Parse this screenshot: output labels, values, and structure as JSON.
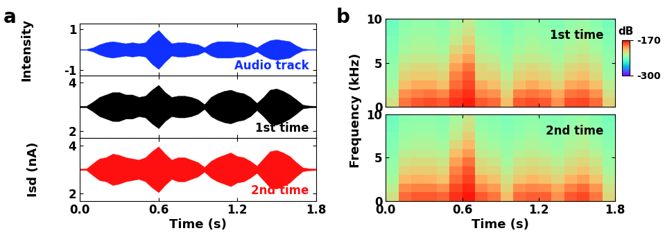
{
  "panel_labels": [
    "a",
    "b"
  ],
  "shared_labels": {
    "a_ylabel": "Isd (nA)",
    "b_ylabel": "Frequency (kHz)"
  },
  "chart_data": [
    {
      "type": "band",
      "ylabel": "Intensity",
      "annotation": "Audio track",
      "color": "#1030ff",
      "x": [
        0.0,
        0.05,
        0.1,
        0.15,
        0.2,
        0.25,
        0.3,
        0.35,
        0.4,
        0.45,
        0.5,
        0.55,
        0.6,
        0.65,
        0.7,
        0.75,
        0.8,
        0.85,
        0.9,
        0.95,
        1.0,
        1.05,
        1.1,
        1.15,
        1.2,
        1.25,
        1.3,
        1.35,
        1.4,
        1.45,
        1.5,
        1.55,
        1.6,
        1.65,
        1.7,
        1.75,
        1.8
      ],
      "upper": [
        0.02,
        0.02,
        0.1,
        0.25,
        0.35,
        0.4,
        0.35,
        0.3,
        0.35,
        0.3,
        0.35,
        0.7,
        0.95,
        0.6,
        0.3,
        0.35,
        0.35,
        0.3,
        0.25,
        0.1,
        0.3,
        0.4,
        0.4,
        0.4,
        0.35,
        0.35,
        0.25,
        0.1,
        0.3,
        0.45,
        0.5,
        0.45,
        0.4,
        0.2,
        0.05,
        0.02,
        0.02
      ],
      "lower": [
        -0.02,
        -0.02,
        -0.1,
        -0.25,
        -0.35,
        -0.4,
        -0.35,
        -0.3,
        -0.35,
        -0.3,
        -0.35,
        -0.7,
        -0.95,
        -0.6,
        -0.3,
        -0.35,
        -0.35,
        -0.3,
        -0.25,
        -0.1,
        -0.3,
        -0.4,
        -0.4,
        -0.4,
        -0.35,
        -0.35,
        -0.25,
        -0.1,
        -0.3,
        -0.45,
        -0.5,
        -0.45,
        -0.4,
        -0.2,
        -0.05,
        -0.02,
        -0.02
      ],
      "xlim": [
        0.0,
        1.8
      ],
      "xticks": [
        0.0,
        0.6,
        1.2,
        1.8
      ],
      "ylim": [
        -1.25,
        1.25
      ],
      "yticks": [
        -1,
        1
      ],
      "tick_labels": "y"
    },
    {
      "type": "band",
      "annotation": "1st time",
      "color": "#000000",
      "x": [
        0.0,
        0.05,
        0.1,
        0.15,
        0.2,
        0.25,
        0.3,
        0.35,
        0.4,
        0.45,
        0.5,
        0.55,
        0.6,
        0.65,
        0.7,
        0.75,
        0.8,
        0.85,
        0.9,
        0.95,
        1.0,
        1.05,
        1.1,
        1.15,
        1.2,
        1.25,
        1.3,
        1.35,
        1.4,
        1.45,
        1.5,
        1.55,
        1.6,
        1.65,
        1.7,
        1.75,
        1.8
      ],
      "upper": [
        3.03,
        3.03,
        3.2,
        3.4,
        3.5,
        3.6,
        3.6,
        3.5,
        3.5,
        3.4,
        3.45,
        3.7,
        3.9,
        3.6,
        3.4,
        3.45,
        3.45,
        3.4,
        3.3,
        3.1,
        3.4,
        3.55,
        3.65,
        3.7,
        3.6,
        3.55,
        3.4,
        3.15,
        3.4,
        3.7,
        3.75,
        3.65,
        3.5,
        3.3,
        3.08,
        3.04,
        3.03
      ],
      "lower": [
        2.97,
        2.97,
        2.8,
        2.6,
        2.5,
        2.4,
        2.4,
        2.5,
        2.5,
        2.6,
        2.55,
        2.3,
        2.1,
        2.4,
        2.6,
        2.55,
        2.55,
        2.6,
        2.7,
        2.9,
        2.6,
        2.45,
        2.35,
        2.3,
        2.4,
        2.45,
        2.6,
        2.85,
        2.6,
        2.3,
        2.25,
        2.35,
        2.5,
        2.7,
        2.92,
        2.96,
        2.97
      ],
      "xlim": [
        0.0,
        1.8
      ],
      "xticks": [
        0.0,
        0.6,
        1.2,
        1.8
      ],
      "ylim": [
        1.7,
        4.3
      ],
      "yticks": [
        2,
        4
      ],
      "tick_labels": "y"
    },
    {
      "type": "band",
      "annotation": "2nd time",
      "color": "#ff1010",
      "xlabel": "Time (s)",
      "x": [
        0.0,
        0.05,
        0.1,
        0.15,
        0.2,
        0.25,
        0.3,
        0.35,
        0.4,
        0.45,
        0.5,
        0.55,
        0.6,
        0.65,
        0.7,
        0.75,
        0.8,
        0.85,
        0.9,
        0.95,
        1.0,
        1.05,
        1.1,
        1.15,
        1.2,
        1.25,
        1.3,
        1.35,
        1.4,
        1.45,
        1.5,
        1.55,
        1.6,
        1.65,
        1.7,
        1.75,
        1.8
      ],
      "upper": [
        3.03,
        3.03,
        3.25,
        3.45,
        3.5,
        3.65,
        3.6,
        3.5,
        3.45,
        3.4,
        3.5,
        3.75,
        3.95,
        3.65,
        3.4,
        3.5,
        3.5,
        3.4,
        3.3,
        3.1,
        3.35,
        3.5,
        3.6,
        3.7,
        3.55,
        3.5,
        3.35,
        3.15,
        3.45,
        3.75,
        3.8,
        3.7,
        3.55,
        3.3,
        3.08,
        3.04,
        3.03
      ],
      "lower": [
        2.97,
        2.97,
        2.75,
        2.55,
        2.5,
        2.35,
        2.4,
        2.5,
        2.55,
        2.6,
        2.5,
        2.25,
        2.05,
        2.35,
        2.6,
        2.5,
        2.5,
        2.6,
        2.7,
        2.9,
        2.65,
        2.5,
        2.4,
        2.3,
        2.45,
        2.5,
        2.65,
        2.85,
        2.55,
        2.25,
        2.2,
        2.3,
        2.45,
        2.7,
        2.92,
        2.96,
        2.97
      ],
      "xlim": [
        0.0,
        1.8
      ],
      "xticks": [
        0.0,
        0.6,
        1.2,
        1.8
      ],
      "ylim": [
        1.7,
        4.3
      ],
      "yticks": [
        2,
        4
      ]
    },
    {
      "type": "heatmap",
      "annotation": "1st time",
      "x_edges": [
        0.0,
        0.1,
        0.2,
        0.3,
        0.4,
        0.5,
        0.6,
        0.7,
        0.8,
        0.9,
        1.0,
        1.1,
        1.2,
        1.3,
        1.4,
        1.5,
        1.6,
        1.7,
        1.8
      ],
      "y_edges": [
        0,
        1,
        2,
        3,
        4,
        5,
        6,
        7,
        8,
        9,
        10
      ],
      "cells": [
        [
          -215,
          -190,
          -185,
          -183,
          -185,
          -178,
          -175,
          -185,
          -188,
          -205,
          -185,
          -183,
          -185,
          -195,
          -183,
          -182,
          -188,
          -210
        ],
        [
          -220,
          -195,
          -192,
          -190,
          -193,
          -182,
          -178,
          -193,
          -195,
          -210,
          -192,
          -190,
          -192,
          -200,
          -190,
          -188,
          -195,
          -215
        ],
        [
          -225,
          -205,
          -200,
          -200,
          -205,
          -188,
          -182,
          -200,
          -205,
          -215,
          -205,
          -200,
          -205,
          -210,
          -200,
          -198,
          -205,
          -220
        ],
        [
          -228,
          -210,
          -208,
          -208,
          -210,
          -192,
          -185,
          -210,
          -210,
          -220,
          -210,
          -208,
          -210,
          -215,
          -208,
          -205,
          -212,
          -225
        ],
        [
          -230,
          -215,
          -212,
          -212,
          -215,
          -198,
          -190,
          -212,
          -215,
          -225,
          -215,
          -212,
          -215,
          -220,
          -212,
          -210,
          -215,
          -228
        ],
        [
          -232,
          -220,
          -218,
          -218,
          -220,
          -205,
          -198,
          -218,
          -220,
          -228,
          -220,
          -218,
          -220,
          -225,
          -218,
          -215,
          -220,
          -230
        ],
        [
          -235,
          -225,
          -222,
          -222,
          -225,
          -212,
          -205,
          -222,
          -225,
          -230,
          -225,
          -222,
          -225,
          -228,
          -222,
          -220,
          -225,
          -232
        ],
        [
          -236,
          -228,
          -225,
          -225,
          -228,
          -218,
          -210,
          -225,
          -228,
          -232,
          -228,
          -225,
          -228,
          -230,
          -225,
          -222,
          -228,
          -234
        ],
        [
          -238,
          -230,
          -228,
          -228,
          -230,
          -222,
          -215,
          -228,
          -230,
          -234,
          -230,
          -228,
          -230,
          -232,
          -228,
          -225,
          -230,
          -236
        ],
        [
          -240,
          -232,
          -230,
          -230,
          -232,
          -225,
          -218,
          -230,
          -232,
          -236,
          -232,
          -230,
          -232,
          -234,
          -230,
          -228,
          -232,
          -238
        ]
      ],
      "color_range": [
        -300,
        -170
      ],
      "colorbar": {
        "label": "dB",
        "ticks": [
          -170,
          -300
        ]
      },
      "xlim": [
        0.0,
        1.8
      ],
      "xticks": [
        0.0,
        0.6,
        1.2,
        1.8
      ],
      "ylim": [
        0,
        10
      ],
      "yticks": [
        0,
        5,
        10
      ],
      "tick_labels": "y"
    },
    {
      "type": "heatmap",
      "annotation": "2nd time",
      "xlabel": "Time (s)",
      "x_edges": [
        0.0,
        0.1,
        0.2,
        0.3,
        0.4,
        0.5,
        0.6,
        0.7,
        0.8,
        0.9,
        1.0,
        1.1,
        1.2,
        1.3,
        1.4,
        1.5,
        1.6,
        1.7,
        1.8
      ],
      "y_edges": [
        0,
        1,
        2,
        3,
        4,
        5,
        6,
        7,
        8,
        9,
        10
      ],
      "cells": [
        [
          -215,
          -188,
          -185,
          -185,
          -187,
          -178,
          -174,
          -185,
          -190,
          -205,
          -188,
          -186,
          -186,
          -195,
          -185,
          -182,
          -190,
          -212
        ],
        [
          -220,
          -194,
          -192,
          -192,
          -195,
          -182,
          -177,
          -193,
          -197,
          -210,
          -195,
          -193,
          -194,
          -200,
          -192,
          -188,
          -196,
          -215
        ],
        [
          -225,
          -204,
          -201,
          -202,
          -206,
          -188,
          -181,
          -201,
          -206,
          -215,
          -207,
          -203,
          -206,
          -210,
          -202,
          -198,
          -206,
          -220
        ],
        [
          -228,
          -210,
          -208,
          -209,
          -211,
          -192,
          -184,
          -210,
          -211,
          -220,
          -212,
          -210,
          -211,
          -215,
          -210,
          -206,
          -212,
          -225
        ],
        [
          -230,
          -215,
          -213,
          -213,
          -216,
          -198,
          -189,
          -213,
          -216,
          -225,
          -216,
          -214,
          -216,
          -220,
          -214,
          -211,
          -216,
          -228
        ],
        [
          -232,
          -220,
          -219,
          -219,
          -221,
          -205,
          -197,
          -219,
          -221,
          -228,
          -221,
          -219,
          -221,
          -225,
          -219,
          -216,
          -221,
          -230
        ],
        [
          -235,
          -225,
          -223,
          -223,
          -226,
          -212,
          -204,
          -223,
          -226,
          -230,
          -226,
          -223,
          -226,
          -228,
          -223,
          -221,
          -226,
          -232
        ],
        [
          -236,
          -228,
          -226,
          -226,
          -229,
          -218,
          -209,
          -226,
          -229,
          -232,
          -229,
          -226,
          -229,
          -230,
          -226,
          -223,
          -229,
          -234
        ],
        [
          -238,
          -230,
          -229,
          -229,
          -231,
          -222,
          -214,
          -229,
          -231,
          -234,
          -231,
          -229,
          -231,
          -232,
          -229,
          -226,
          -231,
          -236
        ],
        [
          -240,
          -232,
          -231,
          -231,
          -233,
          -225,
          -217,
          -231,
          -233,
          -236,
          -233,
          -231,
          -233,
          -234,
          -231,
          -229,
          -233,
          -238
        ]
      ],
      "color_range": [
        -300,
        -170
      ],
      "xlim": [
        0.0,
        1.8
      ],
      "xticks": [
        0.0,
        0.6,
        1.2,
        1.8
      ],
      "ylim": [
        0,
        10
      ],
      "yticks": [
        0,
        5,
        10
      ]
    }
  ]
}
